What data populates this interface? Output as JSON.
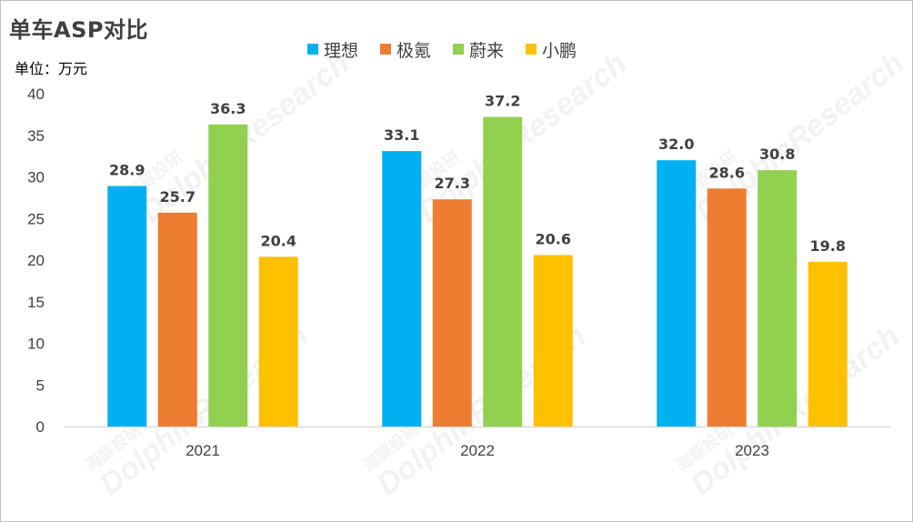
{
  "title": "单车ASP对比",
  "unit_label": "单位：万元",
  "watermark": {
    "text": "DolphinResearch",
    "cn": "海豚投研"
  },
  "chart_data": {
    "type": "bar",
    "title": "单车ASP对比",
    "ylabel": "单位：万元",
    "xlabel": "",
    "categories": [
      "2021",
      "2022",
      "2023"
    ],
    "ylim": [
      0,
      40
    ],
    "yticks": [
      0,
      5,
      10,
      15,
      20,
      25,
      30,
      35,
      40
    ],
    "grid": false,
    "legend_position": "top",
    "data_labels": true,
    "series": [
      {
        "name": "理想",
        "color": "#00b0f0",
        "values": [
          28.9,
          33.1,
          32.0
        ],
        "labels": [
          "28.9",
          "33.1",
          "32.0"
        ]
      },
      {
        "name": "极氪",
        "color": "#ed7d31",
        "values": [
          25.7,
          27.3,
          28.6
        ],
        "labels": [
          "25.7",
          "27.3",
          "28.6"
        ]
      },
      {
        "name": "蔚来",
        "color": "#92d050",
        "values": [
          36.3,
          37.2,
          30.8
        ],
        "labels": [
          "36.3",
          "37.2",
          "30.8"
        ]
      },
      {
        "name": "小鹏",
        "color": "#ffc000",
        "values": [
          20.4,
          20.6,
          19.8
        ],
        "labels": [
          "20.4",
          "20.6",
          "19.8"
        ]
      }
    ]
  }
}
